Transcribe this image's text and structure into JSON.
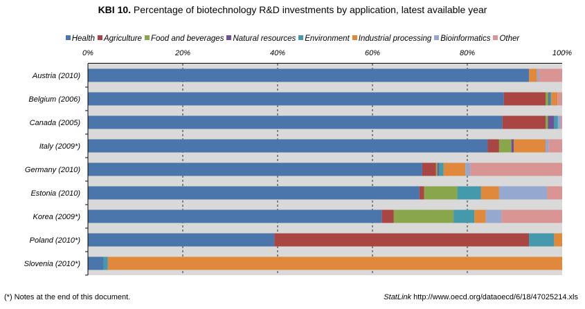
{
  "title": {
    "prefix": "KBI 10.",
    "text": "Percentage of biotechnology R&D investments by application, latest available year"
  },
  "footnote": "(*) Notes at the end of this document.",
  "statlink": {
    "label": "StatLink",
    "url": "http://www.oecd.org/dataoecd/6/18/47025214.xls"
  },
  "colors": {
    "Health": "#4a76ab",
    "Agriculture": "#a94543",
    "Food and beverages": "#8aa64a",
    "Natural resources": "#6e5294",
    "Environment": "#4599ad",
    "Industrial processing": "#e0893d",
    "Bioinformatics": "#94a8d0",
    "Other": "#d99594",
    "plot_background": "#d9d9d9"
  },
  "chart_data": {
    "type": "bar",
    "orientation": "horizontal",
    "stacked": true,
    "title": "KBI 10. Percentage of biotechnology R&D investments by application, latest available year",
    "xlabel": "",
    "ylabel": "",
    "xlim": [
      0,
      100
    ],
    "x_ticks": [
      "0%",
      "20%",
      "40%",
      "60%",
      "80%",
      "100%"
    ],
    "grid": "vertical dashed",
    "legend_position": "top",
    "categories": [
      "Austria (2010)",
      "Belgium (2006)",
      "Canada (2005)",
      "Italy (2009*)",
      "Germany  (2010)",
      "Estonia (2010)",
      "Korea (2009*)",
      "Poland (2010*)",
      "Slovenia (2010*)"
    ],
    "series": [
      {
        "name": "Health",
        "values": [
          93.0,
          87.7,
          87.4,
          84.3,
          70.5,
          69.9,
          62.0,
          39.3,
          3.3
        ]
      },
      {
        "name": "Agriculture",
        "values": [
          0.0,
          8.8,
          9.1,
          2.4,
          2.9,
          1.0,
          2.5,
          53.7,
          0.0
        ]
      },
      {
        "name": "Food and beverages",
        "values": [
          0.0,
          0.6,
          0.5,
          2.6,
          0.3,
          7.0,
          12.6,
          0.0,
          0.0
        ]
      },
      {
        "name": "Natural resources",
        "values": [
          0.0,
          0.2,
          1.3,
          0.5,
          0.3,
          0.0,
          0.0,
          0.0,
          0.0
        ]
      },
      {
        "name": "Environment",
        "values": [
          0.0,
          0.4,
          0.8,
          0.0,
          1.0,
          5.0,
          4.4,
          5.3,
          0.9
        ]
      },
      {
        "name": "Industrial processing",
        "values": [
          1.7,
          1.3,
          0.0,
          6.7,
          4.6,
          3.8,
          2.4,
          1.7,
          95.8
        ]
      },
      {
        "name": "Bioinformatics",
        "values": [
          0.4,
          0.0,
          0.6,
          0.6,
          1.0,
          10.1,
          3.3,
          0.0,
          0.0
        ]
      },
      {
        "name": "Other",
        "values": [
          4.9,
          1.0,
          0.3,
          2.9,
          19.4,
          3.2,
          12.8,
          0.0,
          0.0
        ]
      }
    ]
  }
}
